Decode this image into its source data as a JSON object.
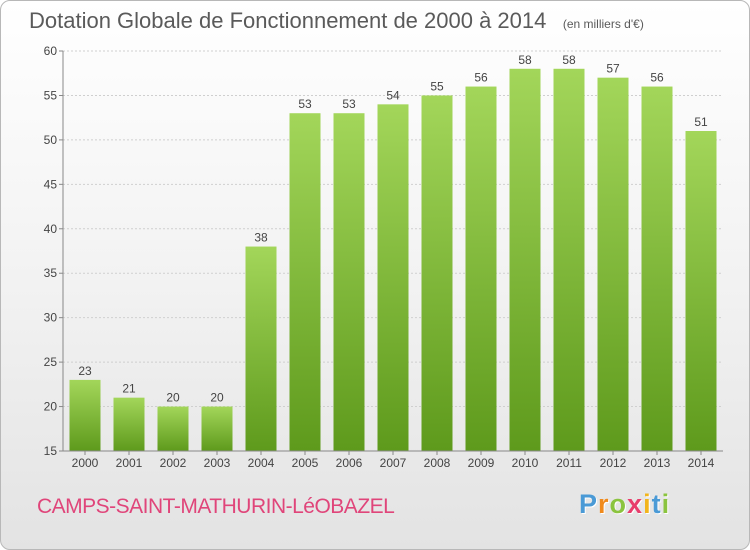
{
  "title": "Dotation Globale de Fonctionnement de 2000 à 2014",
  "subtitle": "(en milliers d'€)",
  "commune": "CAMPS-SAINT-MATHURIN-LéOBAZEL",
  "logo": {
    "letters": [
      "P",
      "r",
      "o",
      "x",
      "i",
      "t",
      "i"
    ],
    "colors": [
      "#4a9ad6",
      "#f08a1c",
      "#8bc43f",
      "#e83e6c",
      "#f2b51c",
      "#4a9ad6",
      "#8bc43f"
    ]
  },
  "colors": {
    "bar_light": "#a3d65a",
    "bar_dark": "#5e9a1c",
    "title_text": "#5a5a5a",
    "commune_text": "#e0457a"
  },
  "chart_data": {
    "type": "bar",
    "categories": [
      "2000",
      "2001",
      "2002",
      "2003",
      "2004",
      "2005",
      "2006",
      "2007",
      "2008",
      "2009",
      "2010",
      "2011",
      "2012",
      "2013",
      "2014"
    ],
    "values": [
      23,
      21,
      20,
      20,
      38,
      53,
      53,
      54,
      55,
      56,
      58,
      58,
      57,
      56,
      51
    ],
    "ylim": [
      15,
      60
    ],
    "yticks": [
      15,
      20,
      25,
      30,
      35,
      40,
      45,
      50,
      55,
      60
    ],
    "grid": "horizontal",
    "title": "Dotation Globale de Fonctionnement de 2000 à 2014",
    "xlabel": "",
    "ylabel": ""
  }
}
